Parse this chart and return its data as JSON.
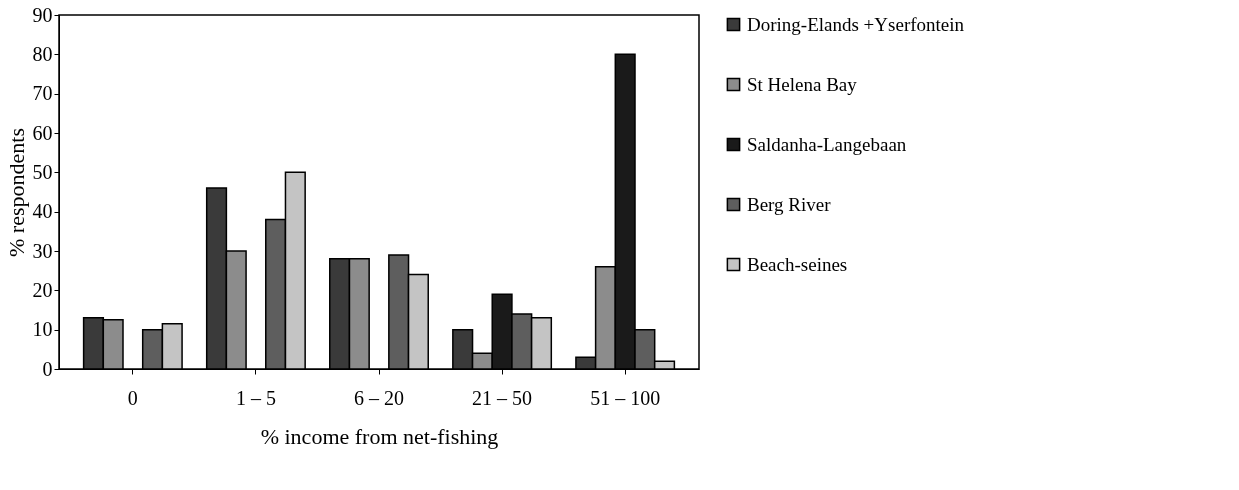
{
  "chart_data": {
    "type": "bar",
    "xlabel": "% income from net-fishing",
    "ylabel": "% respondents",
    "categories": [
      "0",
      "1 – 5",
      "6 – 20",
      "21 – 50",
      "51 – 100"
    ],
    "series": [
      {
        "name": "Doring-Elands +Yserfontein",
        "color": "#3a3a3a",
        "values": [
          13,
          46,
          28,
          10,
          3
        ]
      },
      {
        "name": "St Helena Bay",
        "color": "#8c8c8c",
        "values": [
          12.5,
          30,
          28,
          4,
          26
        ]
      },
      {
        "name": "Saldanha-Langebaan",
        "color": "#1a1a1a",
        "values": [
          null,
          null,
          null,
          19,
          80
        ]
      },
      {
        "name": "Berg River",
        "color": "#5e5e5e",
        "values": [
          10,
          38,
          29,
          14,
          10
        ]
      },
      {
        "name": "Beach-seines",
        "color": "#c4c4c4",
        "values": [
          11.5,
          50,
          24,
          13,
          2
        ]
      }
    ],
    "ylim": [
      0,
      90
    ],
    "yticks": [
      0,
      10,
      20,
      30,
      40,
      50,
      60,
      70,
      80,
      90
    ],
    "grid": false,
    "legend": "right"
  }
}
